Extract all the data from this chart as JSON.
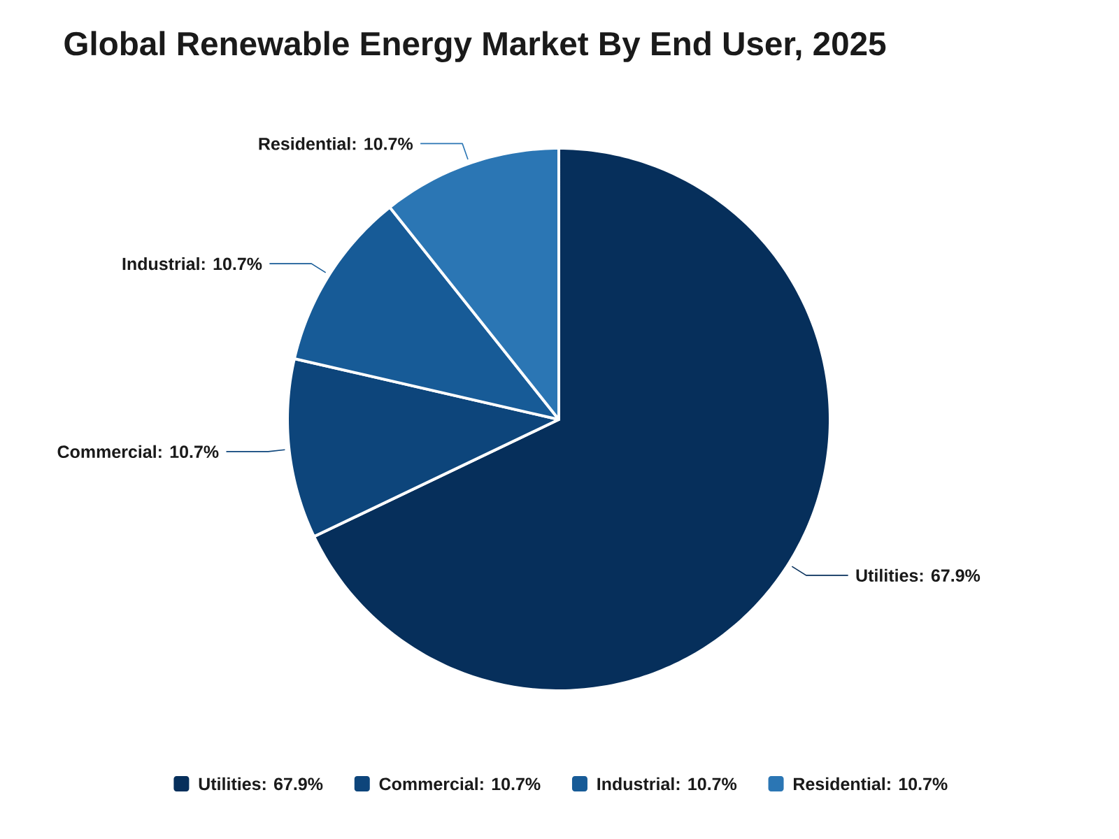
{
  "chart_data": {
    "type": "pie",
    "title": "Global Renewable Energy Market By End User, 2025",
    "categories": [
      "Utilities: 67.9%",
      "Commercial: 10.7%",
      "Industrial: 10.7%",
      "Residential: 10.7%"
    ],
    "values": [
      67.9,
      10.7,
      10.7,
      10.7
    ],
    "colors": [
      "#062f5b",
      "#0d457b",
      "#175b97",
      "#2b76b4"
    ],
    "legend": "bottom"
  }
}
